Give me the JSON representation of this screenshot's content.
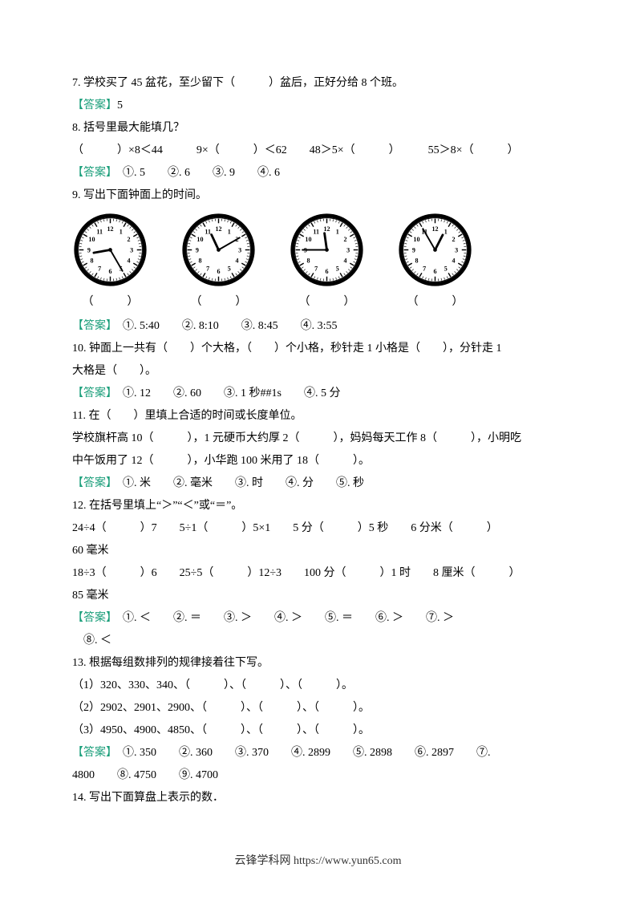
{
  "q7": {
    "text": "7. 学校买了 45 盆花，至少留下（　　　）盆后，正好分给 8 个班。",
    "answer_label": "【答案】",
    "answer_value": "5"
  },
  "q8": {
    "text": "8. 括号里最大能填几？",
    "expr": "（　　　）×8＜44　　　9×（　　　）＜62　　48＞5×（　　　）　　　55＞8×（　　　）",
    "answer_label": "【答案】",
    "answers": "　①. 5　　②. 6　　③. 9　　④. 6"
  },
  "q9": {
    "text": "9. 写出下面钟面上的时间。",
    "clocks": [
      {
        "hour_angle": 260,
        "minute_angle": 150
      },
      {
        "hour_angle": 335,
        "minute_angle": 60
      },
      {
        "hour_angle": 352,
        "minute_angle": 270
      },
      {
        "hour_angle": 27,
        "minute_angle": 330
      }
    ],
    "bracket_label": "（　　　）",
    "answer_label": "【答案】",
    "answers": "　①. 5:40　　②. 8:10　　③. 8:45　　④. 3:55"
  },
  "q10": {
    "text": "10. 钟面上一共有（　　）个大格，（　　）个小格，秒针走 1 小格是（　　），分针走 1",
    "text2": "大格是（　　）。",
    "answer_label": "【答案】",
    "answers": "　①. 12　　②. 60　　③. 1 秒##1s　　④. 5 分"
  },
  "q11": {
    "text": "11. 在（　　）里填上合适的时间或长度单位。",
    "line1": "学校旗杆高 10（　　　），1 元硬币大约厚 2（　　　），妈妈每天工作 8（　　　），小明吃",
    "line2": "中午饭用了 12（　　　），小华跑 100 米用了 18（　　　）。",
    "answer_label": "【答案】",
    "answers": "　①. 米　　②. 毫米　　③. 时　　④. 分　　⑤. 秒"
  },
  "q12": {
    "text": "12. 在括号里填上“＞”“＜”或“＝”。",
    "line1": "24÷4（　　　）7　　5÷1（　　　）5×1　　5 分（　　　）5 秒　　6 分米（　　　）",
    "line1b": "60 毫米",
    "line2": "18÷3（　　　）6　　25÷5（　　　）12÷3　　100 分（　　　）1 时　　8 厘米（　　　）",
    "line2b": "85 毫米",
    "answer_label": "【答案】",
    "answers1": "　①. ＜　　②. ＝　　③. ＞　　④. ＞　　⑤. ＝　　⑥. ＞　　⑦. ＞",
    "answers2": "　⑧. ＜"
  },
  "q13": {
    "text": "13. 根据每组数排列的规律接着往下写。",
    "line1": "（1）320、330、340、（　　　）、（　　　）、（　　　）。",
    "line2": "（2）2902、2901、2900、（　　　）、（　　　）、（　　　）。",
    "line3": "（3）4950、4900、4850、（　　　）、（　　　）、（　　　）。",
    "answer_label": "【答案】",
    "answers1": "　①. 350　　②. 360　　③. 370　　④. 2899　　⑤. 2898　　⑥. 2897　　⑦.",
    "answers2": "4800　　⑧. 4750　　⑨. 4700"
  },
  "q14": {
    "text": "14. 写出下面算盘上表示的数．"
  },
  "footer": {
    "text": "云锋学科网 https://www.yun65.com"
  },
  "clockStyle": {
    "face_fill": "#ffffff",
    "border_stroke": "#000000",
    "border_width": 2.5,
    "num_font": 8.5,
    "num_fill": "#000000",
    "tick_stroke": "#000000",
    "hour_hand_stroke": "#000000",
    "hour_hand_width": 3,
    "minute_hand_stroke": "#000000",
    "minute_hand_width": 2,
    "center_fill": "#000000"
  }
}
